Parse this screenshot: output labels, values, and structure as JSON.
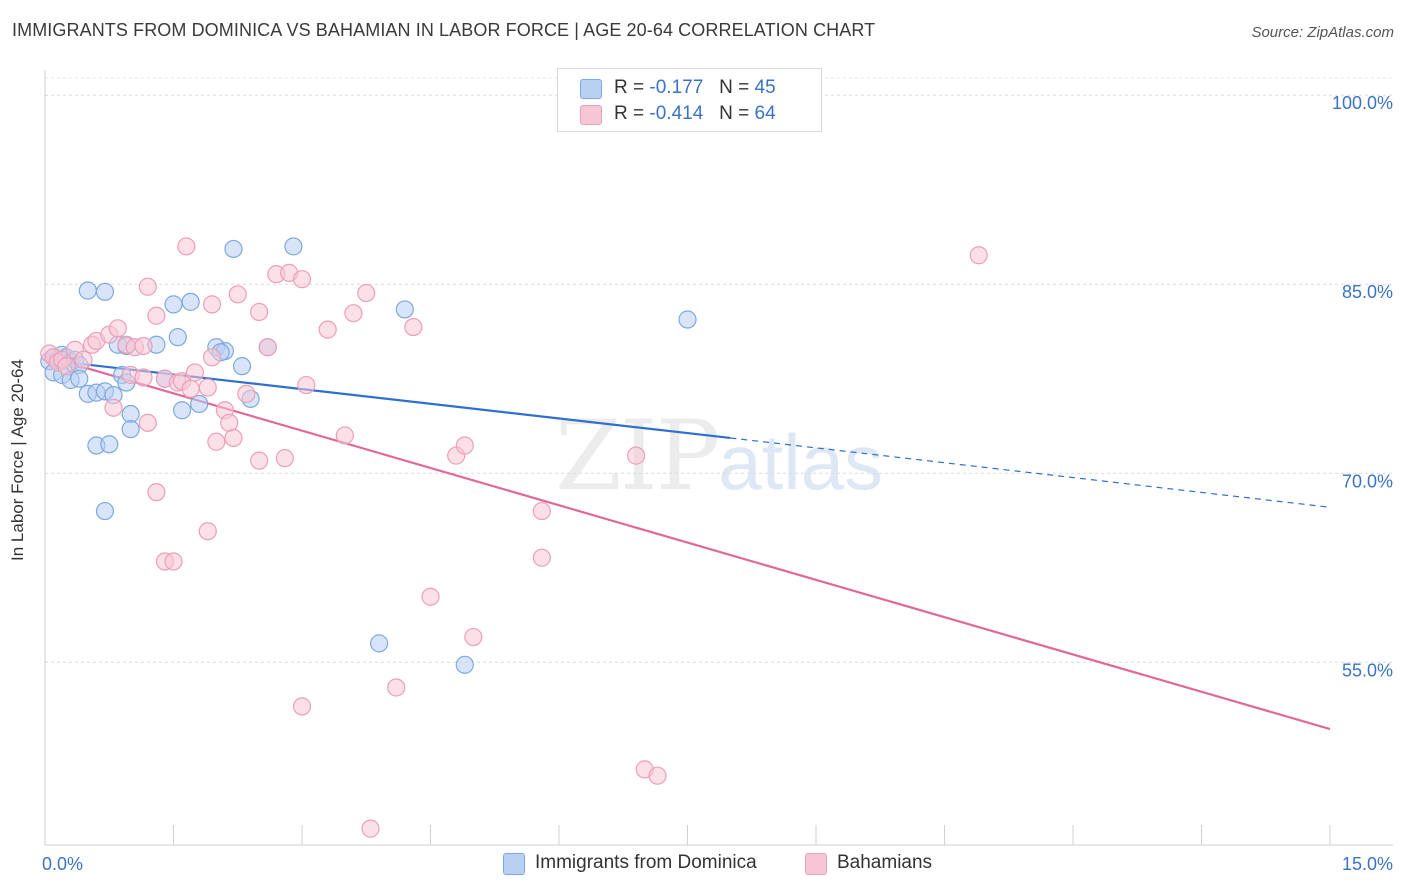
{
  "title": "IMMIGRANTS FROM DOMINICA VS BAHAMIAN IN LABOR FORCE | AGE 20-64 CORRELATION CHART",
  "source": "Source: ZipAtlas.com",
  "watermark": {
    "zip": "ZIP",
    "atlas": "atlas"
  },
  "legend": {
    "r_label": "R =",
    "n_label": "N =",
    "series": [
      {
        "r": "-0.177",
        "n": "45"
      },
      {
        "r": "-0.414",
        "n": "64"
      }
    ]
  },
  "chart_data": {
    "type": "scatter",
    "title": "IMMIGRANTS FROM DOMINICA VS BAHAMIAN IN LABOR FORCE | AGE 20-64 CORRELATION CHART",
    "xlabel": "",
    "ylabel": "In Labor Force | Age 20-64",
    "xlim": [
      0,
      15
    ],
    "ylim": [
      40.5,
      102
    ],
    "x_tick_labels": [
      "0.0%",
      "15.0%"
    ],
    "y_ticks": [
      55,
      70,
      85,
      100
    ],
    "y_tick_labels": [
      "55.0%",
      "70.0%",
      "85.0%",
      "100.0%"
    ],
    "grid": true,
    "legend_position": "top-center",
    "series": [
      {
        "name": "Immigrants from Dominica",
        "color": "#7fa8e0",
        "fill": "#b8d0f2",
        "line_color": "#2f6fcf",
        "trend": {
          "x0": 0,
          "y0": 79.0,
          "x1": 8.0,
          "y1": 72.8,
          "dashed_to_x": 15.0,
          "dashed_to_y": 67.3
        },
        "points": [
          [
            0.05,
            78.9
          ],
          [
            0.1,
            79.2
          ],
          [
            0.15,
            79.0
          ],
          [
            0.2,
            79.4
          ],
          [
            0.25,
            79.2
          ],
          [
            0.3,
            78.8
          ],
          [
            0.35,
            79.0
          ],
          [
            0.4,
            78.6
          ],
          [
            0.1,
            78.0
          ],
          [
            0.2,
            77.8
          ],
          [
            0.3,
            77.4
          ],
          [
            0.4,
            77.5
          ],
          [
            0.5,
            76.3
          ],
          [
            0.6,
            76.4
          ],
          [
            0.7,
            76.5
          ],
          [
            0.8,
            76.2
          ],
          [
            0.9,
            77.8
          ],
          [
            0.95,
            77.2
          ],
          [
            0.5,
            84.5
          ],
          [
            0.7,
            84.4
          ],
          [
            0.85,
            80.2
          ],
          [
            0.95,
            80.1
          ],
          [
            1.3,
            80.2
          ],
          [
            1.5,
            83.4
          ],
          [
            1.55,
            80.8
          ],
          [
            1.7,
            83.6
          ],
          [
            2.0,
            80.0
          ],
          [
            2.1,
            79.7
          ],
          [
            2.05,
            79.6
          ],
          [
            2.3,
            78.5
          ],
          [
            1.4,
            77.5
          ],
          [
            1.6,
            75.0
          ],
          [
            1.8,
            75.5
          ],
          [
            1.0,
            74.7
          ],
          [
            1.0,
            73.5
          ],
          [
            0.6,
            72.2
          ],
          [
            0.75,
            72.3
          ],
          [
            0.7,
            67.0
          ],
          [
            2.2,
            87.8
          ],
          [
            2.9,
            88.0
          ],
          [
            2.6,
            80.0
          ],
          [
            2.4,
            75.9
          ],
          [
            4.2,
            83.0
          ],
          [
            7.5,
            82.2
          ],
          [
            3.9,
            56.5
          ],
          [
            4.9,
            54.8
          ]
        ]
      },
      {
        "name": "Bahamians",
        "color": "#ec9fb8",
        "fill": "#f7c6d5",
        "line_color": "#e0699a",
        "trend": {
          "x0": 0,
          "y0": 79.3,
          "x1": 15.0,
          "y1": 49.7
        },
        "points": [
          [
            0.05,
            79.5
          ],
          [
            0.1,
            79.2
          ],
          [
            0.15,
            78.8
          ],
          [
            0.2,
            79.0
          ],
          [
            0.25,
            78.5
          ],
          [
            0.35,
            79.8
          ],
          [
            0.45,
            79.0
          ],
          [
            0.55,
            80.2
          ],
          [
            0.6,
            80.5
          ],
          [
            0.75,
            81.0
          ],
          [
            0.85,
            81.5
          ],
          [
            0.95,
            80.2
          ],
          [
            1.05,
            80.0
          ],
          [
            1.15,
            80.1
          ],
          [
            1.3,
            82.5
          ],
          [
            1.2,
            84.8
          ],
          [
            1.0,
            77.8
          ],
          [
            1.15,
            77.6
          ],
          [
            1.4,
            77.5
          ],
          [
            1.55,
            77.2
          ],
          [
            1.6,
            77.3
          ],
          [
            1.75,
            78.0
          ],
          [
            1.7,
            76.7
          ],
          [
            1.9,
            76.8
          ],
          [
            1.95,
            79.2
          ],
          [
            2.1,
            75.0
          ],
          [
            2.15,
            74.0
          ],
          [
            2.2,
            72.8
          ],
          [
            2.35,
            76.3
          ],
          [
            2.5,
            71.0
          ],
          [
            2.5,
            82.8
          ],
          [
            2.6,
            80.0
          ],
          [
            2.7,
            85.8
          ],
          [
            2.85,
            85.9
          ],
          [
            3.0,
            85.4
          ],
          [
            2.8,
            71.2
          ],
          [
            3.05,
            77.0
          ],
          [
            3.3,
            81.4
          ],
          [
            3.6,
            82.7
          ],
          [
            3.75,
            84.3
          ],
          [
            3.5,
            73.0
          ],
          [
            4.3,
            81.6
          ],
          [
            4.8,
            71.4
          ],
          [
            4.9,
            72.2
          ],
          [
            5.8,
            67.0
          ],
          [
            5.8,
            63.3
          ],
          [
            6.9,
            71.4
          ],
          [
            10.9,
            87.3
          ],
          [
            1.3,
            68.5
          ],
          [
            1.4,
            63.0
          ],
          [
            1.5,
            63.0
          ],
          [
            1.9,
            65.4
          ],
          [
            2.0,
            72.5
          ],
          [
            1.65,
            88.0
          ],
          [
            2.25,
            84.2
          ],
          [
            1.95,
            83.4
          ],
          [
            1.2,
            74.0
          ],
          [
            0.8,
            75.2
          ],
          [
            4.5,
            60.2
          ],
          [
            5.0,
            57.0
          ],
          [
            3.0,
            51.5
          ],
          [
            4.1,
            53.0
          ],
          [
            7.0,
            46.5
          ],
          [
            7.15,
            46.0
          ],
          [
            3.8,
            41.8
          ]
        ]
      }
    ]
  }
}
